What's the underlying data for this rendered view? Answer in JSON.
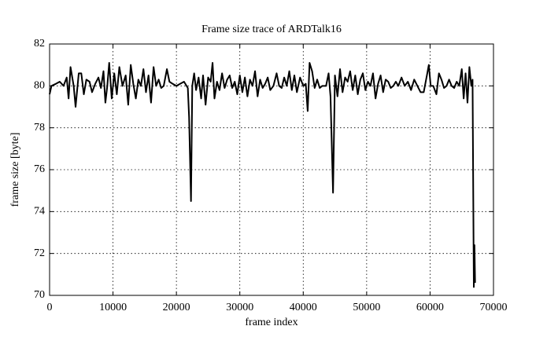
{
  "chart_data": {
    "type": "line",
    "title": "Frame size trace of ARDTalk16",
    "x_label": "frame index",
    "y_label": "frame size [byte]",
    "xlim": [
      0,
      70000
    ],
    "ylim": [
      70,
      82
    ],
    "xticks": [
      0,
      10000,
      20000,
      30000,
      40000,
      50000,
      60000,
      70000
    ],
    "yticks": [
      70,
      72,
      74,
      76,
      78,
      80,
      82
    ],
    "grid": true,
    "color": "#000000",
    "x": [
      0,
      300,
      1000,
      1600,
      2200,
      2700,
      3000,
      3300,
      3800,
      4100,
      4600,
      5000,
      5400,
      5800,
      6300,
      6700,
      7200,
      7700,
      8100,
      8500,
      8800,
      9100,
      9400,
      9800,
      10200,
      10600,
      11000,
      11500,
      12000,
      12400,
      12800,
      13200,
      13600,
      14000,
      14400,
      14800,
      15200,
      15600,
      16000,
      16400,
      16800,
      17200,
      17600,
      18000,
      18500,
      18900,
      19400,
      20000,
      20600,
      21200,
      21800,
      22000,
      22300,
      22500,
      22800,
      23100,
      23500,
      23900,
      24200,
      24600,
      25000,
      25400,
      25700,
      26000,
      26400,
      26800,
      27200,
      27600,
      28000,
      28400,
      28800,
      29200,
      29600,
      30000,
      30400,
      30800,
      31200,
      31600,
      32000,
      32400,
      32800,
      33200,
      33600,
      34000,
      34400,
      34800,
      35300,
      35800,
      36200,
      36600,
      37000,
      37400,
      37800,
      38200,
      38600,
      39000,
      39500,
      40000,
      40400,
      40700,
      41000,
      41400,
      41800,
      42200,
      42600,
      43000,
      43600,
      44000,
      44300,
      44700,
      45000,
      45400,
      45800,
      46200,
      46600,
      47000,
      47400,
      47800,
      48200,
      48600,
      49000,
      49400,
      49800,
      50200,
      50600,
      51000,
      51400,
      51800,
      52200,
      52600,
      53000,
      53400,
      53800,
      54200,
      54600,
      55000,
      55500,
      56000,
      56500,
      57000,
      57500,
      58000,
      58500,
      59000,
      59500,
      59800,
      60100,
      60500,
      61000,
      61400,
      61800,
      62200,
      62600,
      63000,
      63400,
      63800,
      64200,
      64600,
      65000,
      65300,
      65600,
      65900,
      66200,
      66500,
      66700,
      66900,
      67000,
      67100
    ],
    "values": [
      79.6,
      80.0,
      80.1,
      80.2,
      80.0,
      80.4,
      79.4,
      80.9,
      80.0,
      79.0,
      80.6,
      80.6,
      79.6,
      80.3,
      80.2,
      79.7,
      80.1,
      80.4,
      79.9,
      80.7,
      79.2,
      80.0,
      81.1,
      79.4,
      80.6,
      79.6,
      80.9,
      80.0,
      80.5,
      79.1,
      81.0,
      80.1,
      79.4,
      80.3,
      80.0,
      80.8,
      79.7,
      80.5,
      79.2,
      80.9,
      80.0,
      80.3,
      79.9,
      80.0,
      80.8,
      80.2,
      80.1,
      80.0,
      80.1,
      80.2,
      79.9,
      78.5,
      74.5,
      80.0,
      80.6,
      79.8,
      80.4,
      79.4,
      80.5,
      79.1,
      80.4,
      80.2,
      81.1,
      79.4,
      80.2,
      79.8,
      80.6,
      79.9,
      80.3,
      80.5,
      79.9,
      80.2,
      79.6,
      80.5,
      79.7,
      80.4,
      79.5,
      80.3,
      80.0,
      80.7,
      79.5,
      80.3,
      79.9,
      80.1,
      80.4,
      79.8,
      80.0,
      80.6,
      80.0,
      79.9,
      80.4,
      80.0,
      80.7,
      79.8,
      80.5,
      79.7,
      80.4,
      80.0,
      80.1,
      78.8,
      81.1,
      80.7,
      79.9,
      80.3,
      79.9,
      80.0,
      80.0,
      80.6,
      79.5,
      74.9,
      80.5,
      79.5,
      80.8,
      79.7,
      80.4,
      80.2,
      80.7,
      79.8,
      80.5,
      79.6,
      80.3,
      80.6,
      79.8,
      80.2,
      80.0,
      80.6,
      79.4,
      80.1,
      80.5,
      79.7,
      80.3,
      80.2,
      79.9,
      80.0,
      80.2,
      80.0,
      80.4,
      80.0,
      80.2,
      79.8,
      80.3,
      80.0,
      79.7,
      79.7,
      80.5,
      81.0,
      80.0,
      80.0,
      79.6,
      80.6,
      80.3,
      79.9,
      80.0,
      80.3,
      80.0,
      79.9,
      80.2,
      80.0,
      80.8,
      79.4,
      80.6,
      79.2,
      80.9,
      80.0,
      80.3,
      70.4,
      72.4,
      70.6
    ]
  }
}
